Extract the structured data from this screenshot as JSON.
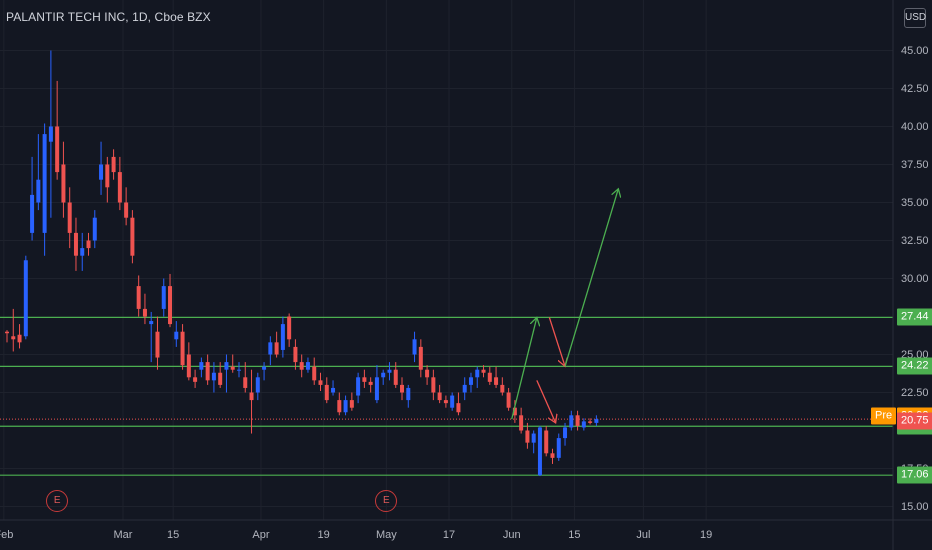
{
  "header": {
    "title": "PALANTIR TECH INC, 1D, Cboe BZX",
    "currency": "USD"
  },
  "chart_data": {
    "type": "candlestick",
    "y_ticks": [
      {
        "value": 45,
        "label": "45.00"
      },
      {
        "value": 42.5,
        "label": "42.50"
      },
      {
        "value": 40,
        "label": "40.00"
      },
      {
        "value": 37.5,
        "label": "37.50"
      },
      {
        "value": 35,
        "label": "35.00"
      },
      {
        "value": 32.5,
        "label": "32.50"
      },
      {
        "value": 30,
        "label": "30.00"
      },
      {
        "value": 25,
        "label": "25.00"
      },
      {
        "value": 22.5,
        "label": "22.50"
      },
      {
        "value": 17.5,
        "label": "17.50"
      },
      {
        "value": 15,
        "label": "15.00"
      }
    ],
    "x_ticks": [
      "Feb",
      "Mar",
      "15",
      "Apr",
      "19",
      "May",
      "17",
      "Jun",
      "15",
      "Jul",
      "19"
    ],
    "x_tick_days": [
      -0.5,
      18.5,
      26.5,
      40.5,
      50.5,
      60.5,
      70.5,
      80.5,
      90.5,
      101.5,
      111.5
    ],
    "horizontal_levels": [
      27.44,
      24.22,
      20.28,
      17.06
    ],
    "current_price": 20.75,
    "premarket_price": 20.93,
    "premarket_label": "Pre",
    "earnings_marker": "E",
    "earnings_days": [
      8,
      60.5
    ],
    "candles": [
      [
        26.5,
        26.6,
        25.8,
        26.4
      ],
      [
        26.2,
        28.0,
        25.2,
        26.0
      ],
      [
        26.3,
        27.0,
        25.4,
        25.8
      ],
      [
        26.2,
        31.5,
        26.0,
        31.2
      ],
      [
        33.0,
        38.0,
        32.5,
        35.5
      ],
      [
        35.0,
        39.5,
        34.5,
        36.5
      ],
      [
        33.0,
        40.2,
        31.5,
        39.5
      ],
      [
        39.0,
        45.0,
        34.0,
        40.0
      ],
      [
        40.0,
        43.0,
        36.5,
        37.0
      ],
      [
        37.5,
        39.0,
        34.0,
        35.0
      ],
      [
        35.0,
        36.0,
        32.0,
        33.0
      ],
      [
        33.0,
        34.0,
        30.5,
        31.5
      ],
      [
        31.5,
        33.0,
        30.5,
        32.0
      ],
      [
        32.5,
        33.0,
        31.5,
        32.0
      ],
      [
        32.5,
        34.5,
        32.0,
        34.0
      ],
      [
        36.5,
        39.0,
        35.5,
        37.5
      ],
      [
        37.5,
        38.0,
        35.0,
        36.0
      ],
      [
        38.0,
        38.5,
        36.5,
        37.0
      ],
      [
        37.0,
        38.0,
        34.5,
        35.0
      ],
      [
        35.0,
        36.0,
        33.5,
        34.0
      ],
      [
        34.0,
        34.5,
        31.0,
        31.5
      ],
      [
        29.5,
        30.2,
        27.5,
        28.0
      ],
      [
        28.0,
        29.0,
        27.0,
        27.5
      ],
      [
        27.0,
        27.8,
        24.5,
        27.2
      ],
      [
        26.5,
        27.5,
        24.0,
        24.8
      ],
      [
        28.0,
        30.0,
        27.5,
        29.5
      ],
      [
        29.5,
        30.3,
        26.8,
        27.0
      ],
      [
        26.0,
        27.2,
        25.5,
        26.5
      ],
      [
        26.5,
        27.0,
        24.0,
        24.3
      ],
      [
        25.0,
        25.8,
        23.3,
        23.5
      ],
      [
        23.5,
        24.0,
        22.8,
        23.2
      ],
      [
        24.0,
        24.8,
        23.5,
        24.5
      ],
      [
        24.5,
        25.0,
        23.0,
        23.3
      ],
      [
        23.3,
        24.5,
        22.5,
        23.8
      ],
      [
        23.8,
        24.5,
        22.8,
        23.0
      ],
      [
        24.0,
        25.0,
        22.5,
        24.5
      ],
      [
        24.2,
        25.0,
        23.8,
        24.0
      ],
      [
        24.0,
        24.5,
        23.5,
        24.0
      ],
      [
        23.5,
        24.5,
        22.5,
        22.8
      ],
      [
        22.5,
        24.0,
        19.8,
        22.0
      ],
      [
        22.5,
        23.8,
        22.0,
        23.5
      ],
      [
        24.0,
        24.5,
        23.3,
        24.2
      ],
      [
        25.0,
        26.2,
        24.3,
        25.8
      ],
      [
        25.8,
        26.5,
        24.8,
        25.0
      ],
      [
        25.3,
        27.5,
        24.8,
        27.0
      ],
      [
        27.5,
        27.7,
        25.5,
        26.0
      ],
      [
        25.5,
        26.0,
        24.0,
        24.5
      ],
      [
        24.5,
        25.0,
        23.5,
        24.0
      ],
      [
        24.0,
        24.8,
        23.8,
        24.5
      ],
      [
        24.2,
        24.8,
        23.0,
        23.3
      ],
      [
        23.3,
        23.8,
        22.6,
        23.0
      ],
      [
        23.0,
        23.5,
        21.8,
        22.0
      ],
      [
        22.5,
        23.3,
        22.3,
        22.8
      ],
      [
        22.0,
        22.5,
        21.0,
        21.2
      ],
      [
        21.2,
        22.3,
        21.0,
        22.0
      ],
      [
        22.0,
        22.5,
        21.3,
        21.5
      ],
      [
        22.3,
        23.8,
        21.8,
        23.5
      ],
      [
        23.5,
        24.0,
        22.8,
        23.2
      ],
      [
        23.2,
        23.5,
        22.5,
        23.0
      ],
      [
        22.0,
        24.3,
        21.8,
        23.5
      ],
      [
        23.5,
        24.0,
        23.0,
        23.8
      ],
      [
        23.8,
        24.5,
        23.3,
        24.0
      ],
      [
        24.0,
        24.5,
        22.8,
        23.0
      ],
      [
        23.0,
        23.5,
        22.0,
        22.5
      ],
      [
        22.0,
        23.0,
        21.5,
        22.8
      ],
      [
        25.0,
        26.5,
        24.5,
        26.0
      ],
      [
        25.5,
        26.0,
        23.5,
        24.0
      ],
      [
        24.0,
        24.3,
        23.0,
        23.5
      ],
      [
        23.5,
        24.0,
        22.0,
        22.5
      ],
      [
        22.5,
        23.0,
        21.8,
        22.0
      ],
      [
        22.0,
        22.3,
        21.5,
        21.8
      ],
      [
        21.5,
        22.5,
        21.3,
        22.3
      ],
      [
        21.8,
        22.5,
        21.0,
        21.2
      ],
      [
        22.5,
        23.5,
        22.0,
        23.0
      ],
      [
        23.0,
        23.8,
        22.5,
        23.5
      ],
      [
        23.5,
        24.2,
        22.8,
        24.0
      ],
      [
        24.0,
        24.3,
        23.5,
        23.8
      ],
      [
        23.8,
        24.2,
        23.0,
        23.2
      ],
      [
        23.5,
        24.2,
        22.8,
        23.0
      ],
      [
        23.0,
        23.5,
        22.3,
        22.5
      ],
      [
        22.5,
        22.8,
        21.3,
        21.5
      ],
      [
        21.5,
        22.0,
        20.5,
        21.0
      ],
      [
        21.0,
        21.5,
        19.8,
        20.0
      ],
      [
        20.0,
        20.5,
        18.8,
        19.2
      ],
      [
        19.2,
        20.0,
        18.5,
        19.8
      ],
      [
        17.06,
        20.3,
        17.0,
        20.2
      ],
      [
        20.0,
        20.3,
        18.3,
        18.5
      ],
      [
        18.5,
        18.8,
        17.8,
        18.2
      ],
      [
        18.2,
        19.8,
        18.0,
        19.5
      ],
      [
        19.5,
        20.5,
        19.0,
        20.2
      ],
      [
        20.2,
        21.3,
        20.0,
        21.0
      ],
      [
        21.0,
        21.3,
        20.0,
        20.3
      ],
      [
        20.2,
        20.8,
        20.0,
        20.6
      ],
      [
        20.6,
        20.8,
        20.4,
        20.5
      ],
      [
        20.5,
        21.0,
        20.3,
        20.75
      ]
    ],
    "projection_arrows": [
      {
        "color": "green",
        "points": [
          [
            80.5,
            20.75
          ],
          [
            84.5,
            27.44
          ]
        ]
      },
      {
        "color": "red",
        "points": [
          [
            86.5,
            27.44
          ],
          [
            89,
            24.22
          ]
        ]
      },
      {
        "color": "green",
        "points": [
          [
            89,
            24.22
          ],
          [
            97.5,
            35.9
          ]
        ]
      },
      {
        "color": "red",
        "points": [
          [
            84.5,
            23.3
          ],
          [
            87.5,
            20.5
          ]
        ]
      }
    ],
    "colors": {
      "up": "#2962ff",
      "down": "#ef5350",
      "level": "#4caf50",
      "arrow_green": "#4caf50",
      "arrow_red": "#ef5350",
      "current": "#ef5350",
      "pre": "#ff9800",
      "grid": "#1e222d",
      "background": "#131722"
    }
  }
}
